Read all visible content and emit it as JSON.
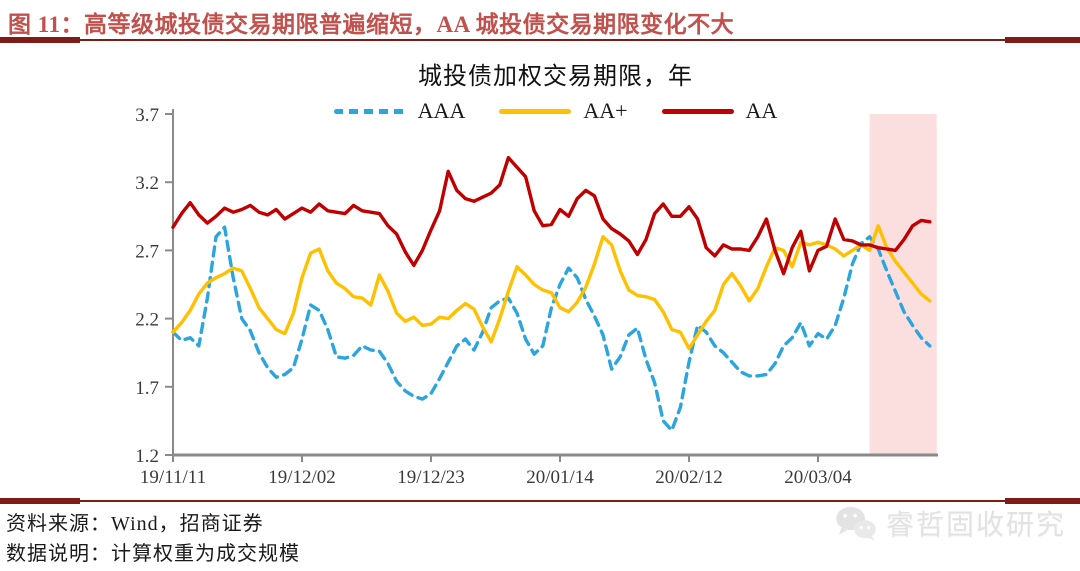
{
  "figure": {
    "caption": "图 11：高等级城投债交易期限普遍缩短，AA 城投债交易期限变化不大",
    "caption_color": "#C1514C",
    "rule_color": "#7E1D17"
  },
  "chart_data": {
    "type": "line",
    "title": "城投债加权交易期限，年",
    "ylim": [
      1.2,
      3.7
    ],
    "y_ticks": [
      3.7,
      3.2,
      2.7,
      2.2,
      1.7,
      1.2
    ],
    "x_tick_labels": [
      "19/11/11",
      "19/12/02",
      "19/12/23",
      "20/01/14",
      "20/02/12",
      "20/03/04"
    ],
    "x_tick_indices": [
      0,
      15,
      30,
      45,
      60,
      75
    ],
    "grid": false,
    "legend_position": "top",
    "axis_color": "#8A8A8A",
    "highlight_band": {
      "start_index": 81,
      "end_index": 88.8,
      "color": "#FBDFDE"
    },
    "series": [
      {
        "name": "AAA",
        "color": "#2CA5DF",
        "style": "dashed",
        "values": [
          2.1,
          2.04,
          2.06,
          2.0,
          2.35,
          2.8,
          2.87,
          2.5,
          2.2,
          2.11,
          1.95,
          1.84,
          1.77,
          1.79,
          1.84,
          2.05,
          2.3,
          2.26,
          2.12,
          1.92,
          1.91,
          1.93,
          2.0,
          1.97,
          1.96,
          1.87,
          1.74,
          1.67,
          1.63,
          1.61,
          1.65,
          1.76,
          1.88,
          2.0,
          2.05,
          1.97,
          2.1,
          2.28,
          2.33,
          2.35,
          2.24,
          2.05,
          1.94,
          2.0,
          2.28,
          2.45,
          2.57,
          2.5,
          2.34,
          2.22,
          2.08,
          1.83,
          1.92,
          2.08,
          2.13,
          1.9,
          1.73,
          1.45,
          1.38,
          1.55,
          1.88,
          2.15,
          2.1,
          2.0,
          1.95,
          1.88,
          1.81,
          1.78,
          1.78,
          1.79,
          1.87,
          2.0,
          2.06,
          2.17,
          2.0,
          2.09,
          2.05,
          2.15,
          2.35,
          2.6,
          2.75,
          2.8,
          2.71,
          2.55,
          2.4,
          2.25,
          2.15,
          2.06,
          2.0
        ]
      },
      {
        "name": "AA+",
        "color": "#FFC000",
        "style": "solid",
        "values": [
          2.1,
          2.17,
          2.26,
          2.38,
          2.46,
          2.5,
          2.53,
          2.57,
          2.55,
          2.42,
          2.28,
          2.2,
          2.12,
          2.09,
          2.24,
          2.5,
          2.68,
          2.71,
          2.55,
          2.46,
          2.42,
          2.36,
          2.35,
          2.3,
          2.52,
          2.4,
          2.24,
          2.18,
          2.21,
          2.15,
          2.16,
          2.21,
          2.2,
          2.26,
          2.31,
          2.27,
          2.14,
          2.03,
          2.2,
          2.4,
          2.58,
          2.52,
          2.45,
          2.41,
          2.39,
          2.28,
          2.25,
          2.32,
          2.43,
          2.6,
          2.8,
          2.74,
          2.55,
          2.41,
          2.37,
          2.36,
          2.34,
          2.25,
          2.12,
          2.1,
          1.98,
          2.08,
          2.18,
          2.26,
          2.45,
          2.53,
          2.44,
          2.33,
          2.42,
          2.58,
          2.72,
          2.7,
          2.58,
          2.76,
          2.74,
          2.76,
          2.74,
          2.71,
          2.66,
          2.7,
          2.74,
          2.7,
          2.88,
          2.72,
          2.62,
          2.54,
          2.46,
          2.38,
          2.33
        ]
      },
      {
        "name": "AA",
        "color": "#C00000",
        "style": "solid",
        "values": [
          2.87,
          2.97,
          3.05,
          2.96,
          2.9,
          2.95,
          3.01,
          2.98,
          3.0,
          3.03,
          2.98,
          2.96,
          3.0,
          2.93,
          2.97,
          3.01,
          2.98,
          3.04,
          2.99,
          2.98,
          2.97,
          3.03,
          2.99,
          2.98,
          2.97,
          2.88,
          2.82,
          2.69,
          2.59,
          2.7,
          2.85,
          2.99,
          3.28,
          3.14,
          3.08,
          3.06,
          3.09,
          3.12,
          3.18,
          3.38,
          3.31,
          3.24,
          2.99,
          2.88,
          2.89,
          3.0,
          2.95,
          3.08,
          3.14,
          3.1,
          2.93,
          2.86,
          2.82,
          2.77,
          2.67,
          2.78,
          2.97,
          3.04,
          2.95,
          2.95,
          3.02,
          2.93,
          2.72,
          2.66,
          2.74,
          2.71,
          2.71,
          2.7,
          2.8,
          2.93,
          2.7,
          2.53,
          2.72,
          2.84,
          2.55,
          2.7,
          2.73,
          2.93,
          2.78,
          2.77,
          2.74,
          2.74,
          2.72,
          2.71,
          2.7,
          2.78,
          2.88,
          2.92,
          2.91
        ]
      }
    ]
  },
  "footer": {
    "source": "资料来源：Wind，招商证券",
    "note": "数据说明：计算权重为成交规模"
  },
  "watermark": {
    "text": "睿哲固收研究"
  }
}
